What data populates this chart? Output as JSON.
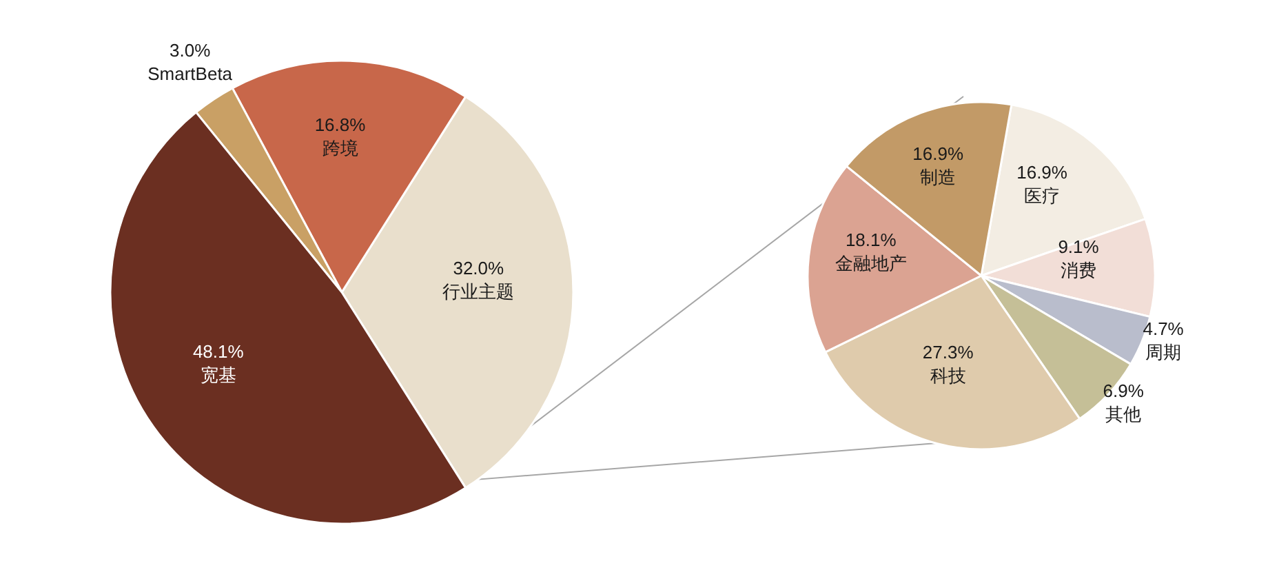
{
  "chart_data": [
    {
      "type": "pie",
      "categories": [
        "行业主题",
        "跨境",
        "SmartBeta",
        "宽基"
      ],
      "values": [
        32.0,
        16.8,
        3.0,
        48.1
      ],
      "colors": [
        "#e9dfcc",
        "#c8674a",
        "#c9a065",
        "#6b2f21"
      ],
      "value_labels": [
        "32.0%",
        "16.8%",
        "3.0%",
        "48.1%"
      ]
    },
    {
      "type": "pie",
      "categories": [
        "医疗",
        "消费",
        "周期",
        "其他",
        "科技",
        "金融地产",
        "制造"
      ],
      "values": [
        16.9,
        9.1,
        4.7,
        6.9,
        27.3,
        18.1,
        16.9
      ],
      "colors": [
        "#f3ede3",
        "#f2ded7",
        "#b9bdcc",
        "#c5bf97",
        "#dfcbac",
        "#dba392",
        "#c29a67"
      ],
      "value_labels": [
        "16.9%",
        "9.1%",
        "4.7%",
        "6.9%",
        "27.3%",
        "18.1%",
        "16.9%"
      ]
    }
  ]
}
